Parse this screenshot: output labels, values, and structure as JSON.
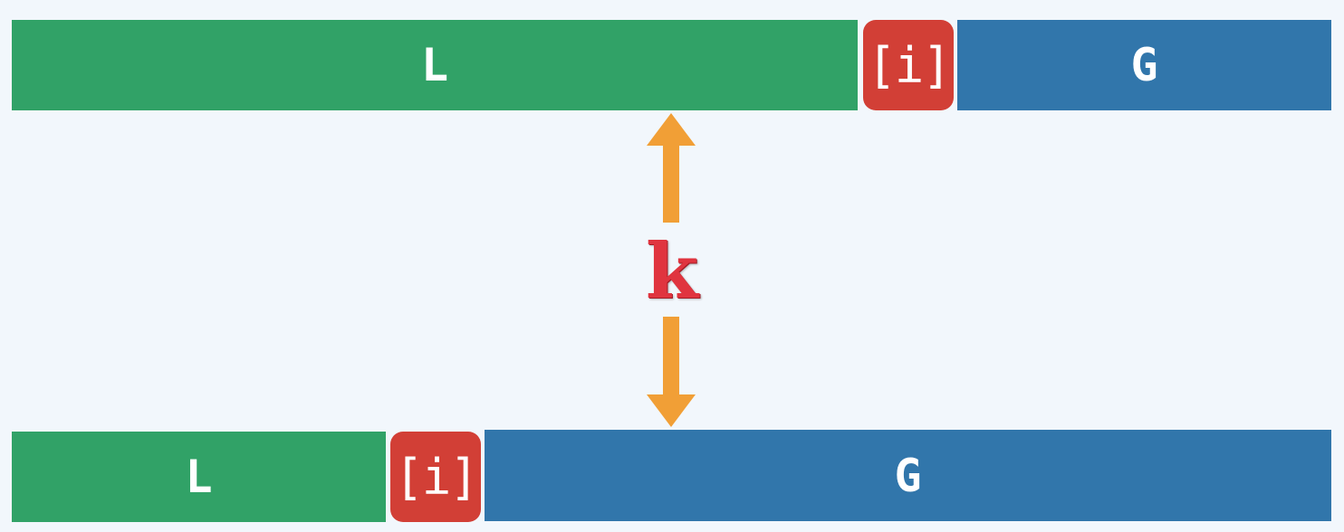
{
  "top_row": {
    "left_label": "L",
    "pivot_label": "[i]",
    "right_label": "G"
  },
  "bottom_row": {
    "left_label": "L",
    "pivot_label": "[i]",
    "right_label": "G"
  },
  "distance_label": "k",
  "colors": {
    "background": "#f2f7fc",
    "less_segment": "#31a267",
    "pivot": "#d23f36",
    "greater_segment": "#3176ab",
    "arrow": "#f19f36",
    "k_label": "#e0343f"
  }
}
